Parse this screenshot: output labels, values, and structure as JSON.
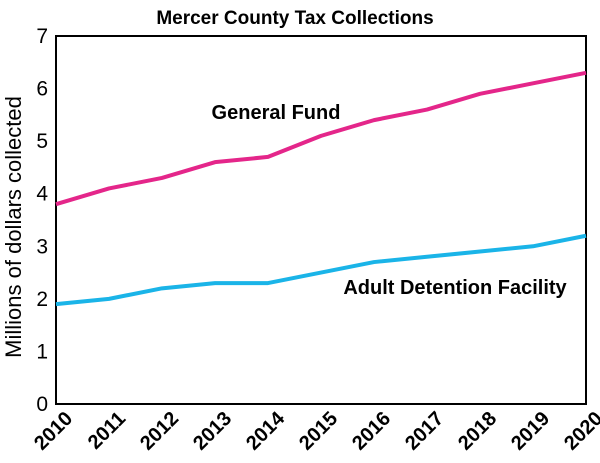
{
  "chart_data": {
    "type": "line",
    "title": "Mercer County Tax Collections",
    "xlabel": "",
    "ylabel": "Millions of dollars collected",
    "x": [
      2010,
      2011,
      2012,
      2013,
      2014,
      2015,
      2016,
      2017,
      2018,
      2019,
      2020
    ],
    "xlim": [
      2010,
      2020
    ],
    "ylim": [
      0,
      7
    ],
    "y_ticks": [
      0,
      1,
      2,
      3,
      4,
      5,
      6,
      7
    ],
    "grid": false,
    "legend": "inline labels",
    "series": [
      {
        "name": "General Fund",
        "color": "#e4268a",
        "values": [
          3.8,
          4.1,
          4.3,
          4.6,
          4.7,
          5.1,
          5.4,
          5.6,
          5.9,
          6.1,
          6.3
        ]
      },
      {
        "name": "Adult Detention Facility",
        "color": "#1ab4e8",
        "values": [
          1.9,
          2.0,
          2.2,
          2.3,
          2.3,
          2.5,
          2.7,
          2.8,
          2.9,
          3.0,
          3.2
        ]
      }
    ]
  }
}
